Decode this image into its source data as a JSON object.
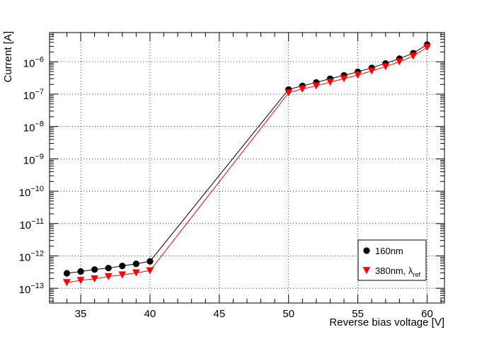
{
  "chart_data": {
    "type": "scatter",
    "title": "",
    "xlabel": "Reverse bias voltage [V]",
    "ylabel": "Current [A]",
    "xlim": [
      32.75,
      61.25
    ],
    "ylim": [
      3.5e-14,
      8e-06
    ],
    "yscale": "log",
    "grid": true,
    "legend_position": "bottom-right",
    "x_ticks": [
      35,
      40,
      45,
      50,
      55,
      60
    ],
    "x_tick_labels": [
      "35",
      "40",
      "45",
      "50",
      "55",
      "60"
    ],
    "y_ticks": [
      1e-13,
      1e-12,
      1e-11,
      1e-10,
      1e-09,
      1e-08,
      1e-07,
      1e-06
    ],
    "y_tick_labels": [
      {
        "base": "10",
        "exp": "−13"
      },
      {
        "base": "10",
        "exp": "−12"
      },
      {
        "base": "10",
        "exp": "−11"
      },
      {
        "base": "10",
        "exp": "−10"
      },
      {
        "base": "10",
        "exp": "−9"
      },
      {
        "base": "10",
        "exp": "−8"
      },
      {
        "base": "10",
        "exp": "−7"
      },
      {
        "base": "10",
        "exp": "−6"
      }
    ],
    "series": [
      {
        "name": "160nm",
        "color": "#000000",
        "marker": "circle",
        "x": [
          34,
          35,
          36,
          37,
          38,
          39,
          40,
          50,
          51,
          52,
          53,
          54,
          55,
          56,
          57,
          58,
          59,
          60
        ],
        "y": [
          2.9e-13,
          3.3e-13,
          3.8e-13,
          4.2e-13,
          4.9e-13,
          5.7e-13,
          6.8e-13,
          1.4e-07,
          1.8e-07,
          2.3e-07,
          3e-07,
          3.8e-07,
          4.9e-07,
          6.5e-07,
          8.9e-07,
          1.25e-06,
          1.85e-06,
          3.4e-06
        ]
      },
      {
        "name": "380nm, λ",
        "name_subscript": "ref",
        "color": "#ff0000",
        "marker": "triangle-down",
        "x": [
          34,
          35,
          36,
          37,
          38,
          39,
          40,
          50,
          51,
          52,
          53,
          54,
          55,
          56,
          57,
          58,
          59,
          60
        ],
        "y": [
          1.5e-13,
          1.75e-13,
          1.95e-13,
          2.3e-13,
          2.6e-13,
          3e-13,
          3.5e-13,
          1.1e-07,
          1.45e-07,
          1.8e-07,
          2.35e-07,
          3e-07,
          3.9e-07,
          5.2e-07,
          7.1e-07,
          1e-06,
          1.5e-06,
          2.8e-06
        ]
      }
    ]
  }
}
